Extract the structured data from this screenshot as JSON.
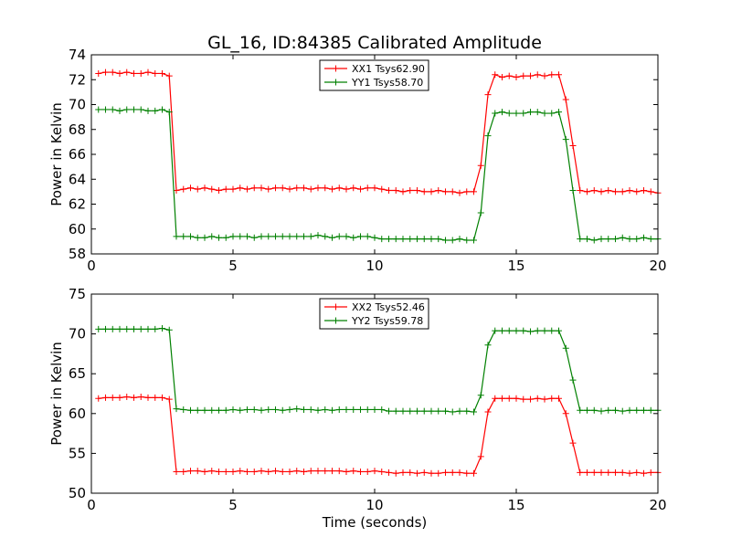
{
  "figure": {
    "title": "GL_16, ID:84385 Calibrated Amplitude"
  },
  "chart_data": [
    {
      "type": "line",
      "title": "GL_16, ID:84385 Calibrated Amplitude",
      "xlabel": "",
      "ylabel": "Power in Kelvin",
      "xlim": [
        0,
        20
      ],
      "ylim": [
        58,
        74
      ],
      "xticks": [
        0,
        5,
        10,
        15,
        20
      ],
      "yticks": [
        58,
        60,
        62,
        64,
        66,
        68,
        70,
        72,
        74
      ],
      "grid": false,
      "legend_position": "top-center",
      "x": [
        0.25,
        0.5,
        0.75,
        1.0,
        1.25,
        1.5,
        1.75,
        2.0,
        2.25,
        2.5,
        2.75,
        3.0,
        3.25,
        3.5,
        3.75,
        4.0,
        4.25,
        4.5,
        4.75,
        5.0,
        5.25,
        5.5,
        5.75,
        6.0,
        6.25,
        6.5,
        6.75,
        7.0,
        7.25,
        7.5,
        7.75,
        8.0,
        8.25,
        8.5,
        8.75,
        9.0,
        9.25,
        9.5,
        9.75,
        10.0,
        10.25,
        10.5,
        10.75,
        11.0,
        11.25,
        11.5,
        11.75,
        12.0,
        12.25,
        12.5,
        12.75,
        13.0,
        13.25,
        13.5,
        13.75,
        14.0,
        14.25,
        14.5,
        14.75,
        15.0,
        15.25,
        15.5,
        15.75,
        16.0,
        16.25,
        16.5,
        16.75,
        17.0,
        17.25,
        17.5,
        17.75,
        18.0,
        18.25,
        18.5,
        18.75,
        19.0,
        19.25,
        19.5,
        19.75,
        20.0
      ],
      "series": [
        {
          "name": "XX1 Tsys62.90",
          "color": "#ff0000",
          "values": [
            72.5,
            72.6,
            72.6,
            72.5,
            72.6,
            72.5,
            72.5,
            72.6,
            72.5,
            72.5,
            72.3,
            63.1,
            63.2,
            63.3,
            63.2,
            63.3,
            63.2,
            63.1,
            63.2,
            63.2,
            63.3,
            63.2,
            63.3,
            63.3,
            63.2,
            63.3,
            63.3,
            63.2,
            63.3,
            63.3,
            63.2,
            63.3,
            63.3,
            63.2,
            63.3,
            63.2,
            63.3,
            63.2,
            63.3,
            63.3,
            63.2,
            63.1,
            63.1,
            63.0,
            63.1,
            63.1,
            63.0,
            63.0,
            63.1,
            63.0,
            63.0,
            62.9,
            63.0,
            63.0,
            65.1,
            70.8,
            72.4,
            72.2,
            72.3,
            72.2,
            72.3,
            72.3,
            72.4,
            72.3,
            72.4,
            72.4,
            70.4,
            66.7,
            63.1,
            63.0,
            63.1,
            63.0,
            63.1,
            63.0,
            63.0,
            63.1,
            63.0,
            63.1,
            63.0,
            62.9
          ]
        },
        {
          "name": "YY1 Tsys58.70",
          "color": "#008000",
          "values": [
            69.6,
            69.6,
            69.6,
            69.5,
            69.6,
            69.6,
            69.6,
            69.5,
            69.5,
            69.6,
            69.4,
            59.4,
            59.4,
            59.4,
            59.3,
            59.3,
            59.4,
            59.3,
            59.3,
            59.4,
            59.4,
            59.4,
            59.3,
            59.4,
            59.4,
            59.4,
            59.4,
            59.4,
            59.4,
            59.4,
            59.4,
            59.5,
            59.4,
            59.3,
            59.4,
            59.4,
            59.3,
            59.4,
            59.4,
            59.3,
            59.2,
            59.2,
            59.2,
            59.2,
            59.2,
            59.2,
            59.2,
            59.2,
            59.2,
            59.1,
            59.1,
            59.2,
            59.1,
            59.1,
            61.3,
            67.5,
            69.3,
            69.4,
            69.3,
            69.3,
            69.3,
            69.4,
            69.4,
            69.3,
            69.3,
            69.4,
            67.2,
            63.1,
            59.2,
            59.2,
            59.1,
            59.2,
            59.2,
            59.2,
            59.3,
            59.2,
            59.2,
            59.3,
            59.2,
            59.2
          ]
        }
      ]
    },
    {
      "type": "line",
      "title": "",
      "xlabel": "Time (seconds)",
      "ylabel": "Power in Kelvin",
      "xlim": [
        0,
        20
      ],
      "ylim": [
        50,
        75
      ],
      "xticks": [
        0,
        5,
        10,
        15,
        20
      ],
      "yticks": [
        50,
        55,
        60,
        65,
        70,
        75
      ],
      "grid": false,
      "legend_position": "top-center",
      "x": [
        0.25,
        0.5,
        0.75,
        1.0,
        1.25,
        1.5,
        1.75,
        2.0,
        2.25,
        2.5,
        2.75,
        3.0,
        3.25,
        3.5,
        3.75,
        4.0,
        4.25,
        4.5,
        4.75,
        5.0,
        5.25,
        5.5,
        5.75,
        6.0,
        6.25,
        6.5,
        6.75,
        7.0,
        7.25,
        7.5,
        7.75,
        8.0,
        8.25,
        8.5,
        8.75,
        9.0,
        9.25,
        9.5,
        9.75,
        10.0,
        10.25,
        10.5,
        10.75,
        11.0,
        11.25,
        11.5,
        11.75,
        12.0,
        12.25,
        12.5,
        12.75,
        13.0,
        13.25,
        13.5,
        13.75,
        14.0,
        14.25,
        14.5,
        14.75,
        15.0,
        15.25,
        15.5,
        15.75,
        16.0,
        16.25,
        16.5,
        16.75,
        17.0,
        17.25,
        17.5,
        17.75,
        18.0,
        18.25,
        18.5,
        18.75,
        19.0,
        19.25,
        19.5,
        19.75,
        20.0
      ],
      "series": [
        {
          "name": "XX2 Tsys52.46",
          "color": "#ff0000",
          "values": [
            61.9,
            62.0,
            62.0,
            62.0,
            62.1,
            62.0,
            62.1,
            62.0,
            62.0,
            62.0,
            61.8,
            52.7,
            52.7,
            52.8,
            52.8,
            52.7,
            52.8,
            52.7,
            52.7,
            52.7,
            52.8,
            52.7,
            52.7,
            52.8,
            52.7,
            52.8,
            52.7,
            52.7,
            52.8,
            52.7,
            52.8,
            52.8,
            52.8,
            52.8,
            52.8,
            52.7,
            52.8,
            52.7,
            52.7,
            52.8,
            52.7,
            52.6,
            52.5,
            52.6,
            52.6,
            52.5,
            52.6,
            52.5,
            52.5,
            52.6,
            52.6,
            52.6,
            52.5,
            52.5,
            54.6,
            60.2,
            61.9,
            61.9,
            61.9,
            61.9,
            61.8,
            61.8,
            61.9,
            61.8,
            61.9,
            61.9,
            60.0,
            56.3,
            52.6,
            52.6,
            52.6,
            52.6,
            52.6,
            52.6,
            52.6,
            52.5,
            52.6,
            52.5,
            52.6,
            52.6
          ]
        },
        {
          "name": "YY2 Tsys59.78",
          "color": "#008000",
          "values": [
            70.6,
            70.6,
            70.6,
            70.6,
            70.6,
            70.6,
            70.6,
            70.6,
            70.6,
            70.7,
            70.5,
            60.6,
            60.5,
            60.4,
            60.4,
            60.4,
            60.4,
            60.4,
            60.4,
            60.5,
            60.4,
            60.5,
            60.5,
            60.4,
            60.5,
            60.5,
            60.4,
            60.5,
            60.6,
            60.5,
            60.5,
            60.4,
            60.5,
            60.4,
            60.5,
            60.5,
            60.5,
            60.5,
            60.5,
            60.5,
            60.5,
            60.3,
            60.3,
            60.3,
            60.3,
            60.3,
            60.3,
            60.3,
            60.3,
            60.3,
            60.2,
            60.3,
            60.3,
            60.2,
            62.3,
            68.6,
            70.4,
            70.4,
            70.4,
            70.4,
            70.4,
            70.3,
            70.4,
            70.4,
            70.4,
            70.4,
            68.2,
            64.2,
            60.4,
            60.4,
            60.4,
            60.3,
            60.4,
            60.4,
            60.3,
            60.4,
            60.4,
            60.4,
            60.4,
            60.4
          ]
        }
      ]
    }
  ]
}
